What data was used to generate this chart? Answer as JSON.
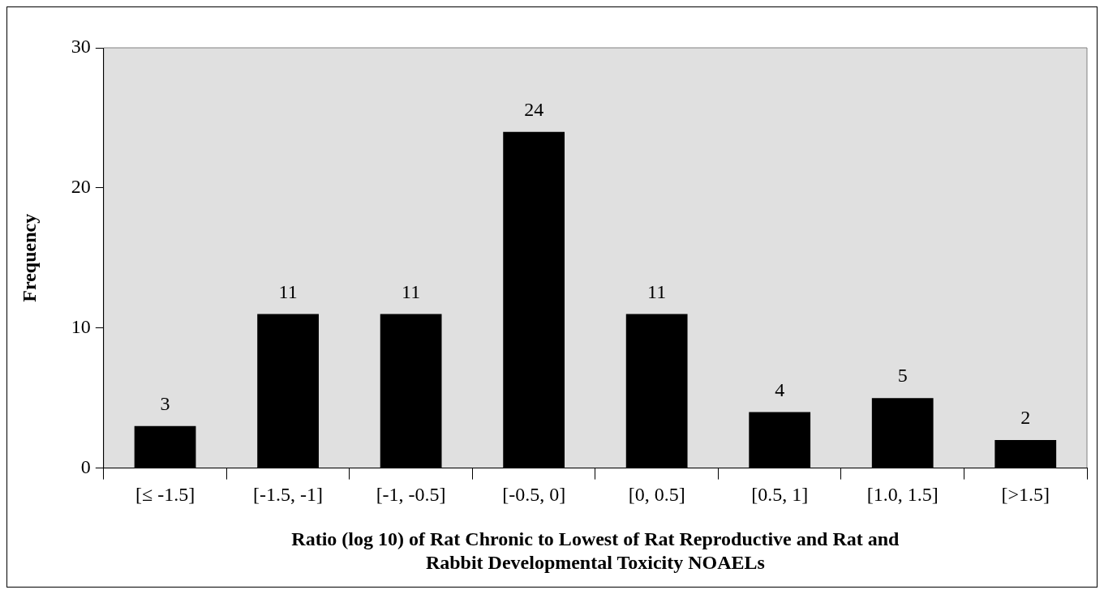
{
  "chart_data": {
    "type": "bar",
    "xlabel": "Ratio (log 10) of Rat Chronic to Lowest of Rat Reproductive and Rat and Rabbit Developmental Toxicity NOAELs",
    "ylabel": "Frequency",
    "categories": [
      "[≤ -1.5]",
      "[-1.5, -1]",
      "[-1, -0.5]",
      "[-0.5, 0]",
      "[0, 0.5]",
      "[0.5, 1]",
      "[1.0, 1.5]",
      "[>1.5]"
    ],
    "values": [
      3,
      11,
      11,
      24,
      11,
      4,
      5,
      2
    ],
    "color": "#000000",
    "ylim": [
      0,
      30
    ],
    "yticks": [
      0,
      10,
      20,
      30
    ],
    "grid": false,
    "legend": false,
    "data_labels": true
  }
}
